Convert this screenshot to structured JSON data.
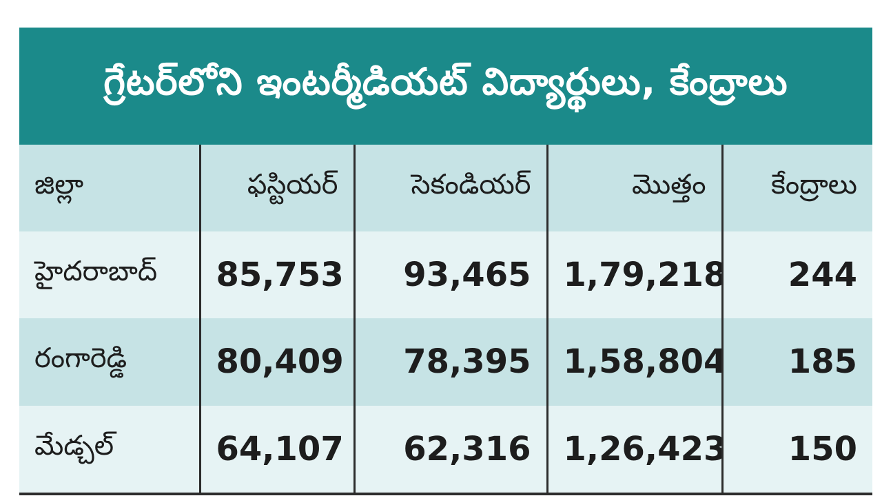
{
  "title": "గ్రేటర్‌లోని ఇంటర్మీడియట్ విద్యార్థులు, కేంద్రాలు",
  "colors": {
    "header_bg": "#1b8a8a",
    "row_dark": "#c6e3e5",
    "row_light": "#e6f3f4"
  },
  "table": {
    "headers": [
      "జిల్లా",
      "ఫస్టియర్",
      "సెకండియర్",
      "మొత్తం",
      "కేంద్రాలు"
    ],
    "rows": [
      {
        "district": "హైదరాబాద్",
        "first_year": "85,753",
        "second_year": "93,465",
        "total": "1,79,218",
        "centres": "244"
      },
      {
        "district": "రంగారెడ్డి",
        "first_year": "80,409",
        "second_year": "78,395",
        "total": "1,58,804",
        "centres": "185"
      },
      {
        "district": "మేడ్చల్",
        "first_year": "64,107",
        "second_year": "62,316",
        "total": "1,26,423",
        "centres": "150"
      }
    ]
  }
}
